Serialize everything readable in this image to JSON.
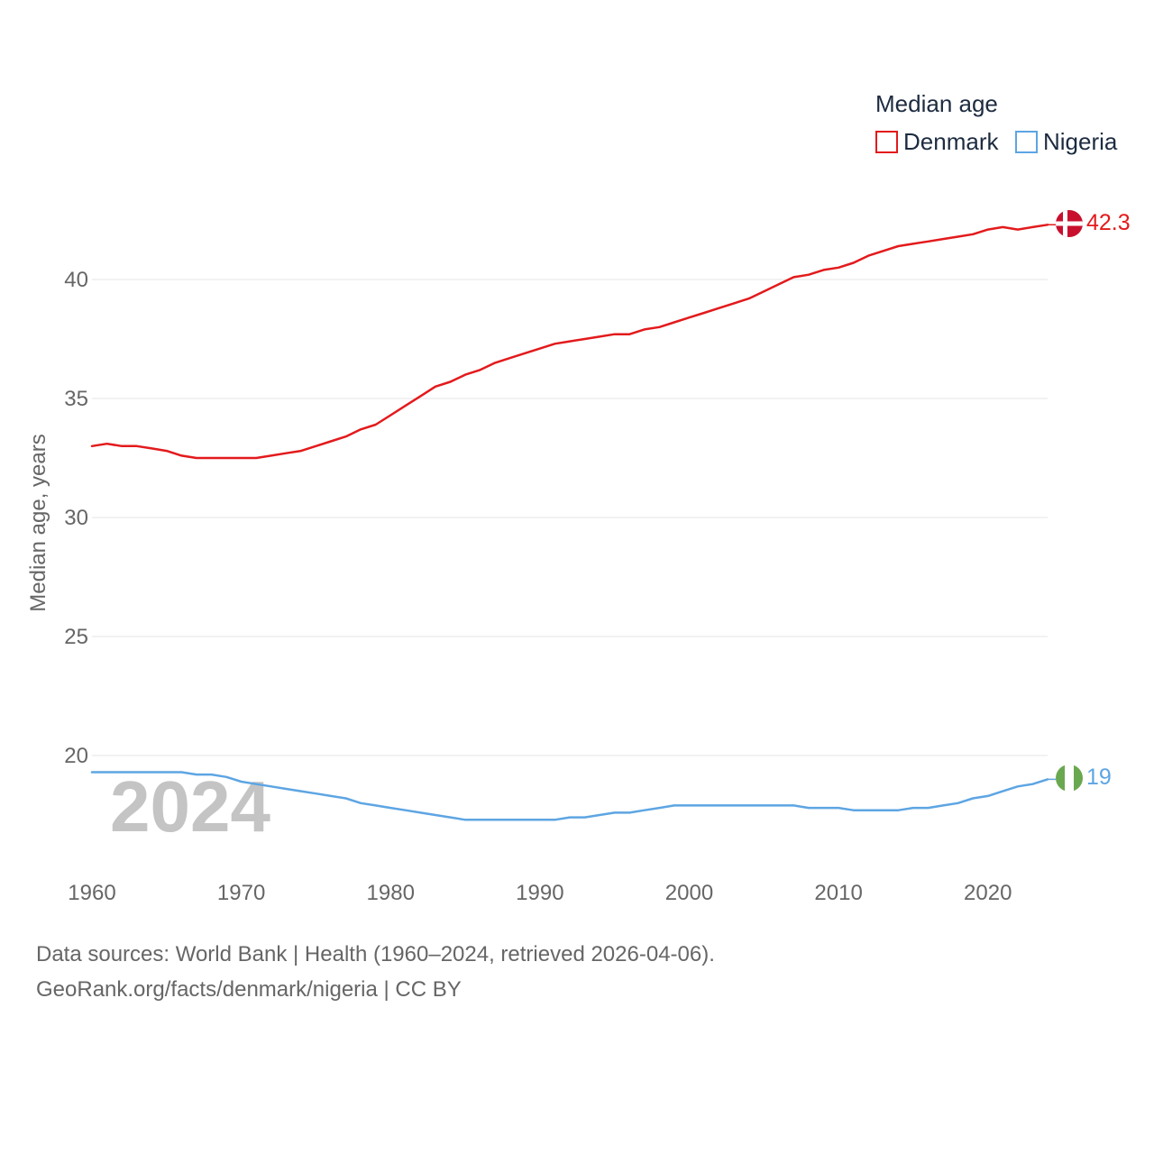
{
  "chart_data": {
    "type": "line",
    "ylabel": "Median age, years",
    "xlabel": "",
    "ylim": [
      16,
      44
    ],
    "xlim": [
      1960,
      2024
    ],
    "yticks": [
      20,
      25,
      30,
      35,
      40
    ],
    "xticks": [
      1960,
      1970,
      1980,
      1990,
      2000,
      2010,
      2020
    ],
    "grid": true,
    "legend": {
      "title": "Median age",
      "position": "top-right"
    },
    "watermark_year": "2024",
    "x": [
      1960,
      1961,
      1962,
      1963,
      1964,
      1965,
      1966,
      1967,
      1968,
      1969,
      1970,
      1971,
      1972,
      1973,
      1974,
      1975,
      1976,
      1977,
      1978,
      1979,
      1980,
      1981,
      1982,
      1983,
      1984,
      1985,
      1986,
      1987,
      1988,
      1989,
      1990,
      1991,
      1992,
      1993,
      1994,
      1995,
      1996,
      1997,
      1998,
      1999,
      2000,
      2001,
      2002,
      2003,
      2004,
      2005,
      2006,
      2007,
      2008,
      2009,
      2010,
      2011,
      2012,
      2013,
      2014,
      2015,
      2016,
      2017,
      2018,
      2019,
      2020,
      2021,
      2022,
      2023,
      2024
    ],
    "series": [
      {
        "name": "Denmark",
        "color": "#e31a1c",
        "end_label": "42.3",
        "flag": "denmark-flag",
        "values": [
          33.0,
          33.1,
          33.0,
          33.0,
          32.9,
          32.8,
          32.6,
          32.5,
          32.5,
          32.5,
          32.5,
          32.5,
          32.6,
          32.7,
          32.8,
          33.0,
          33.2,
          33.4,
          33.7,
          33.9,
          34.3,
          34.7,
          35.1,
          35.5,
          35.7,
          36.0,
          36.2,
          36.5,
          36.7,
          36.9,
          37.1,
          37.3,
          37.4,
          37.5,
          37.6,
          37.7,
          37.7,
          37.9,
          38.0,
          38.2,
          38.4,
          38.6,
          38.8,
          39.0,
          39.2,
          39.5,
          39.8,
          40.1,
          40.2,
          40.4,
          40.5,
          40.7,
          41.0,
          41.2,
          41.4,
          41.5,
          41.6,
          41.7,
          41.8,
          41.9,
          42.1,
          42.2,
          42.1,
          42.2,
          42.3
        ]
      },
      {
        "name": "Nigeria",
        "color": "#5da5e3",
        "end_label": "19",
        "flag": "nigeria-flag",
        "values": [
          19.3,
          19.3,
          19.3,
          19.3,
          19.3,
          19.3,
          19.3,
          19.2,
          19.2,
          19.1,
          18.9,
          18.8,
          18.7,
          18.6,
          18.5,
          18.4,
          18.3,
          18.2,
          18.0,
          17.9,
          17.8,
          17.7,
          17.6,
          17.5,
          17.4,
          17.3,
          17.3,
          17.3,
          17.3,
          17.3,
          17.3,
          17.3,
          17.4,
          17.4,
          17.5,
          17.6,
          17.6,
          17.7,
          17.8,
          17.9,
          17.9,
          17.9,
          17.9,
          17.9,
          17.9,
          17.9,
          17.9,
          17.9,
          17.8,
          17.8,
          17.8,
          17.7,
          17.7,
          17.7,
          17.7,
          17.8,
          17.8,
          17.9,
          18.0,
          18.2,
          18.3,
          18.5,
          18.7,
          18.8,
          19.0
        ]
      }
    ]
  },
  "footer": {
    "line1": "Data sources: World Bank | Health (1960–2024, retrieved 2026-04-06).",
    "line2": "GeoRank.org/facts/denmark/nigeria | CC BY"
  }
}
